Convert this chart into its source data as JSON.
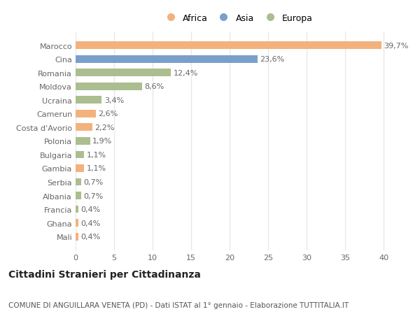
{
  "countries": [
    "Marocco",
    "Cina",
    "Romania",
    "Moldova",
    "Ucraina",
    "Camerun",
    "Costa d'Avorio",
    "Polonia",
    "Bulgaria",
    "Gambia",
    "Serbia",
    "Albania",
    "Francia",
    "Ghana",
    "Mali"
  ],
  "values": [
    39.7,
    23.6,
    12.4,
    8.6,
    3.4,
    2.6,
    2.2,
    1.9,
    1.1,
    1.1,
    0.7,
    0.7,
    0.4,
    0.4,
    0.4
  ],
  "labels": [
    "39,7%",
    "23,6%",
    "12,4%",
    "8,6%",
    "3,4%",
    "2,6%",
    "2,2%",
    "1,9%",
    "1,1%",
    "1,1%",
    "0,7%",
    "0,7%",
    "0,4%",
    "0,4%",
    "0,4%"
  ],
  "continents": [
    "Africa",
    "Asia",
    "Europa",
    "Europa",
    "Europa",
    "Africa",
    "Africa",
    "Europa",
    "Europa",
    "Africa",
    "Europa",
    "Europa",
    "Europa",
    "Africa",
    "Africa"
  ],
  "colors": {
    "Africa": "#F2B27E",
    "Asia": "#7B9FCC",
    "Europa": "#ABBE8F"
  },
  "legend_labels": [
    "Africa",
    "Asia",
    "Europa"
  ],
  "bg_color": "#ffffff",
  "grid_color": "#e8e8e8",
  "title": "Cittadini Stranieri per Cittadinanza",
  "subtitle": "COMUNE DI ANGUILLARA VENETA (PD) - Dati ISTAT al 1° gennaio - Elaborazione TUTTITALIA.IT",
  "xlim": [
    0,
    42
  ],
  "xticks": [
    0,
    5,
    10,
    15,
    20,
    25,
    30,
    35,
    40
  ],
  "bar_height": 0.55,
  "label_fontsize": 8,
  "tick_fontsize": 8,
  "title_fontsize": 10,
  "subtitle_fontsize": 7.5
}
